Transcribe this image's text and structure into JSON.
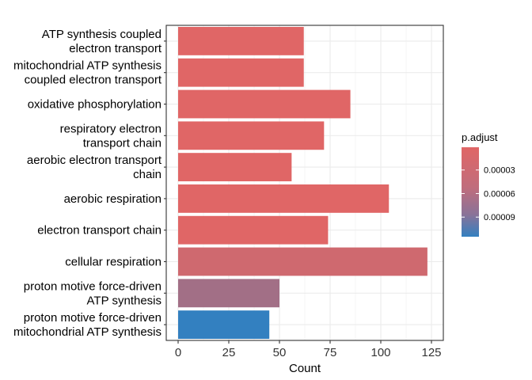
{
  "chart_data": {
    "type": "bar",
    "orientation": "horizontal",
    "xlabel": "Count",
    "ylabel": "",
    "xlim": [
      0,
      129
    ],
    "x_ticks": [
      0,
      25,
      50,
      75,
      100,
      125
    ],
    "grid": true,
    "categories": [
      [
        "ATP synthesis coupled",
        "electron transport"
      ],
      [
        "mitochondrial ATP synthesis",
        "coupled electron transport"
      ],
      [
        "oxidative phosphorylation"
      ],
      [
        "respiratory electron",
        "transport chain"
      ],
      [
        "aerobic electron transport",
        "chain"
      ],
      [
        "aerobic respiration"
      ],
      [
        "electron transport chain"
      ],
      [
        "cellular respiration"
      ],
      [
        "proton motive force-driven",
        "ATP synthesis"
      ],
      [
        "proton motive force-driven",
        "mitochondrial ATP synthesis"
      ]
    ],
    "values": [
      62,
      62,
      85,
      72,
      56,
      104,
      74,
      123,
      50,
      45
    ],
    "p_adjust": [
      1e-06,
      1e-06,
      1e-06,
      1e-06,
      1e-06,
      1e-06,
      1e-06,
      1.2e-05,
      4.2e-05,
      0.000115
    ],
    "legend": {
      "title": "p.adjust",
      "position": "right",
      "ticks": [
        3e-05,
        6e-05,
        9e-05
      ],
      "tick_labels": [
        "0.00003",
        "0.00006",
        "0.00009"
      ],
      "range": [
        1e-06,
        0.000115
      ],
      "low_color": "#E06666",
      "high_color": "#3380C0"
    }
  }
}
